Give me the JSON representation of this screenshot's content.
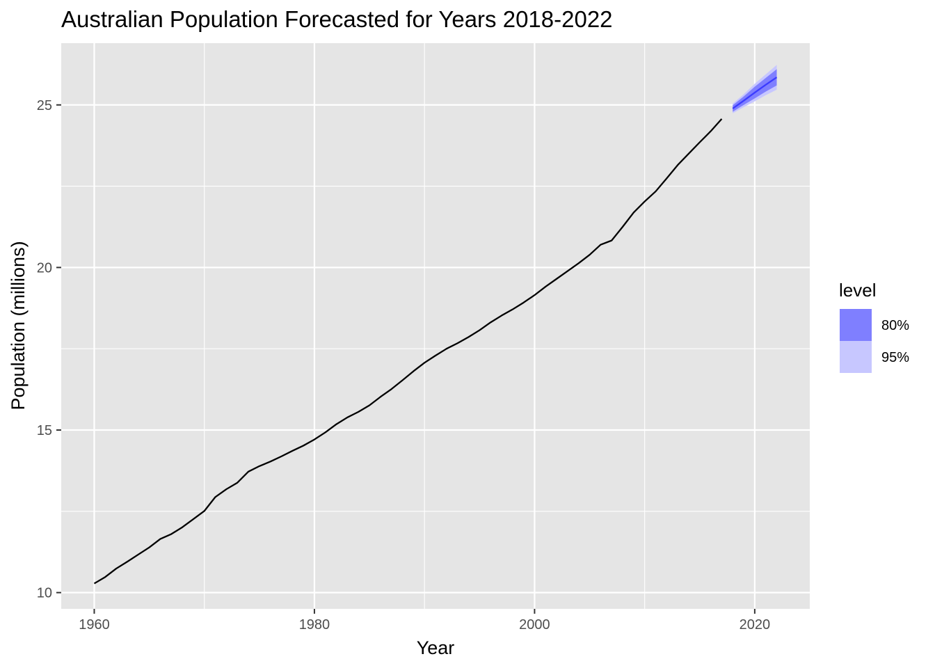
{
  "chart_data": {
    "type": "line",
    "title": "Australian Population Forecasted for Years 2018-2022",
    "xlabel": "Year",
    "ylabel": "Population (millions)",
    "xlim": [
      1957,
      2025
    ],
    "ylim": [
      9.5,
      26.9
    ],
    "x_ticks": [
      1960,
      1980,
      2000,
      2020
    ],
    "x_tick_labels": [
      "1960",
      "1980",
      "2000",
      "2020"
    ],
    "x_minor_ticks": [
      1970,
      1990,
      2010
    ],
    "y_ticks": [
      10,
      15,
      20,
      25
    ],
    "y_tick_labels": [
      "10",
      "15",
      "20",
      "25"
    ],
    "y_minor_ticks": [
      12.5,
      17.5,
      22.5
    ],
    "grid": true,
    "panel_background": "#e5e5e5",
    "grid_color": "#ffffff",
    "series": [
      {
        "x": [
          1960,
          1961,
          1962,
          1963,
          1964,
          1965,
          1966,
          1967,
          1968,
          1969,
          1970,
          1971,
          1972,
          1973,
          1974,
          1975,
          1976,
          1977,
          1978,
          1979,
          1980,
          1981,
          1982,
          1983,
          1984,
          1985,
          1986,
          1987,
          1988,
          1989,
          1990,
          1991,
          1992,
          1993,
          1994,
          1995,
          1996,
          1997,
          1998,
          1999,
          2000,
          2001,
          2002,
          2003,
          2004,
          2005,
          2006,
          2007,
          2008,
          2009,
          2010,
          2011,
          2012,
          2013,
          2014,
          2015,
          2016,
          2017
        ],
        "values": [
          10.28,
          10.48,
          10.74,
          10.95,
          11.17,
          11.39,
          11.65,
          11.8,
          12.01,
          12.26,
          12.51,
          12.94,
          13.18,
          13.38,
          13.72,
          13.89,
          14.03,
          14.19,
          14.36,
          14.52,
          14.71,
          14.93,
          15.18,
          15.39,
          15.56,
          15.76,
          16.02,
          16.26,
          16.53,
          16.81,
          17.07,
          17.29,
          17.5,
          17.67,
          17.86,
          18.07,
          18.31,
          18.52,
          18.71,
          18.92,
          19.15,
          19.41,
          19.65,
          19.89,
          20.13,
          20.39,
          20.7,
          20.83,
          21.25,
          21.69,
          22.03,
          22.34,
          22.74,
          23.15,
          23.5,
          23.85,
          24.19,
          24.57
        ],
        "color": "#000000"
      },
      {
        "x": [
          2018,
          2019,
          2020,
          2021,
          2022
        ],
        "values": [
          24.89,
          25.13,
          25.38,
          25.62,
          25.85
        ],
        "color": "#3b3bff"
      }
    ],
    "intervals": [
      {
        "name": "95%",
        "x": [
          2018,
          2019,
          2020,
          2021,
          2022
        ],
        "lower": [
          24.74,
          24.93,
          25.11,
          25.3,
          25.47
        ],
        "upper": [
          25.04,
          25.33,
          25.65,
          25.94,
          26.23
        ],
        "color": "#c7c7ff"
      },
      {
        "name": "80%",
        "x": [
          2018,
          2019,
          2020,
          2021,
          2022
        ],
        "lower": [
          24.79,
          25.0,
          25.2,
          25.41,
          25.6
        ],
        "upper": [
          24.99,
          25.26,
          25.56,
          25.83,
          26.1
        ],
        "color": "#7f7fff"
      }
    ],
    "legend": {
      "title": "level",
      "position": "right",
      "items": [
        {
          "label": "80%",
          "color": "#7f7fff"
        },
        {
          "label": "95%",
          "color": "#c7c7ff"
        }
      ]
    }
  }
}
